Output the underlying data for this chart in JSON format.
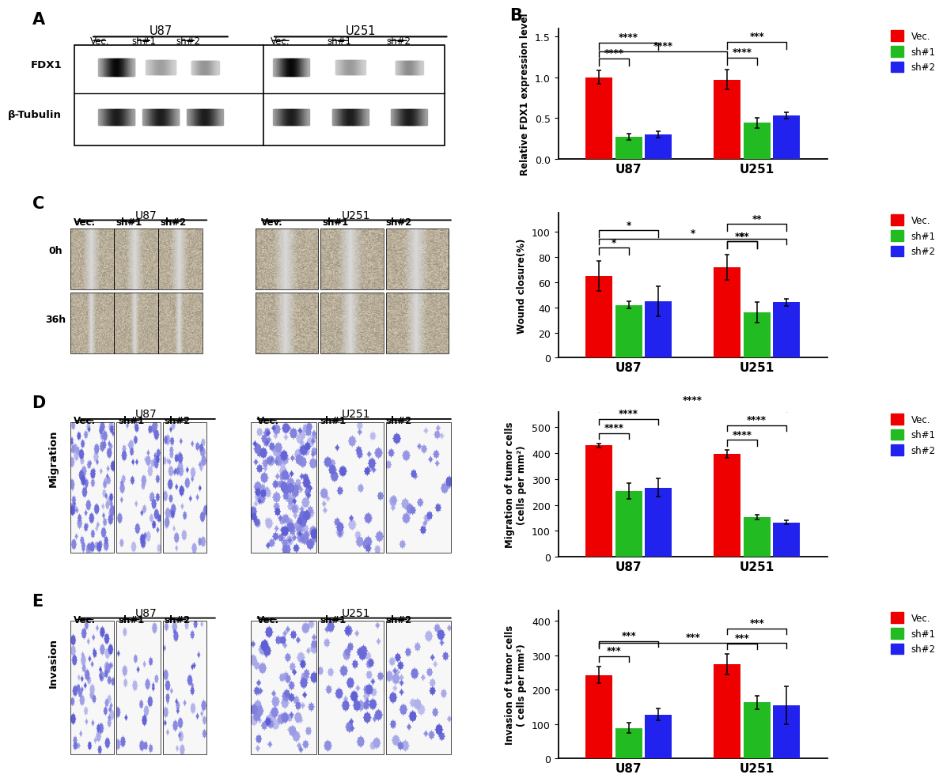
{
  "panel_B": {
    "categories": [
      "U87",
      "U251"
    ],
    "groups": [
      "Vec.",
      "sh#1",
      "sh#2"
    ],
    "colors": [
      "#EE0000",
      "#22BB22",
      "#2222EE"
    ],
    "values": {
      "U87": [
        1.0,
        0.27,
        0.3
      ],
      "U251": [
        0.97,
        0.44,
        0.53
      ]
    },
    "errors": {
      "U87": [
        0.08,
        0.04,
        0.04
      ],
      "U251": [
        0.12,
        0.06,
        0.04
      ]
    },
    "ylabel": "Relative FDX1 expression level",
    "ylim": [
      0,
      1.6
    ],
    "yticks": [
      0.0,
      0.5,
      1.0,
      1.5
    ]
  },
  "panel_C_chart": {
    "categories": [
      "U87",
      "U251"
    ],
    "groups": [
      "Vec.",
      "sh#1",
      "sh#2"
    ],
    "colors": [
      "#EE0000",
      "#22BB22",
      "#2222EE"
    ],
    "values": {
      "U87": [
        65,
        42,
        45
      ],
      "U251": [
        72,
        36,
        44
      ]
    },
    "errors": {
      "U87": [
        12,
        3,
        12
      ],
      "U251": [
        10,
        8,
        3
      ]
    },
    "ylabel": "Wound closure(%)",
    "ylim": [
      0,
      115
    ],
    "yticks": [
      0,
      20,
      40,
      60,
      80,
      100
    ]
  },
  "panel_D_chart": {
    "categories": [
      "U87",
      "U251"
    ],
    "groups": [
      "Vec.",
      "sh#1",
      "sh#2"
    ],
    "colors": [
      "#EE0000",
      "#22BB22",
      "#2222EE"
    ],
    "values": {
      "U87": [
        430,
        253,
        267
      ],
      "U251": [
        397,
        153,
        132
      ]
    },
    "errors": {
      "U87": [
        8,
        30,
        35
      ],
      "U251": [
        15,
        10,
        8
      ]
    },
    "ylabel": "Migration of tumor cells\n(cells per mm²)",
    "ylim": [
      0,
      560
    ],
    "yticks": [
      0,
      100,
      200,
      300,
      400,
      500
    ]
  },
  "panel_E_chart": {
    "categories": [
      "U87",
      "U251"
    ],
    "groups": [
      "Vec.",
      "sh#1",
      "sh#2"
    ],
    "colors": [
      "#EE0000",
      "#22BB22",
      "#2222EE"
    ],
    "values": {
      "U87": [
        243,
        88,
        128
      ],
      "U251": [
        275,
        163,
        155
      ]
    },
    "errors": {
      "U87": [
        25,
        15,
        18
      ],
      "U251": [
        30,
        20,
        55
      ]
    },
    "ylabel": "Invasion of tumor cells\n( cells per mm²)",
    "ylim": [
      0,
      430
    ],
    "yticks": [
      0,
      100,
      200,
      300,
      400
    ]
  },
  "background_color": "#FFFFFF"
}
